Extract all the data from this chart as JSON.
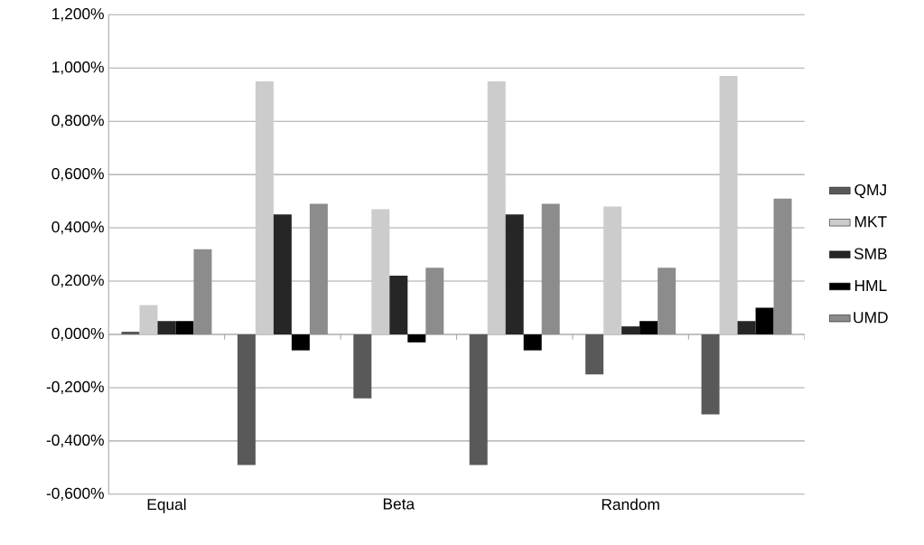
{
  "chart_data": {
    "type": "bar",
    "categories": [
      "Equal",
      null,
      "Beta",
      null,
      "Random",
      null
    ],
    "series": [
      {
        "name": "QMJ",
        "color": "#595959",
        "values": [
          0.01,
          -0.49,
          -0.24,
          -0.49,
          -0.15,
          -0.3
        ]
      },
      {
        "name": "MKT",
        "color": "#cccccc",
        "values": [
          0.11,
          0.95,
          0.47,
          0.95,
          0.48,
          0.97
        ]
      },
      {
        "name": "SMB",
        "color": "#262626",
        "values": [
          0.05,
          0.45,
          0.22,
          0.45,
          0.03,
          0.05
        ]
      },
      {
        "name": "HML",
        "color": "#000000",
        "values": [
          0.05,
          -0.06,
          -0.03,
          -0.06,
          0.05,
          0.1
        ]
      },
      {
        "name": "UMD",
        "color": "#8c8c8c",
        "values": [
          0.32,
          0.49,
          0.25,
          0.49,
          0.25,
          0.51
        ]
      }
    ],
    "ylim": [
      -0.6,
      1.2
    ],
    "yticks": [
      {
        "value": -0.6,
        "label": "-0,600%"
      },
      {
        "value": -0.4,
        "label": "-0,400%"
      },
      {
        "value": -0.2,
        "label": "-0,200%"
      },
      {
        "value": 0,
        "label": "0,000%"
      },
      {
        "value": 0.2,
        "label": "0,200%"
      },
      {
        "value": 0.4,
        "label": "0,400%"
      },
      {
        "value": 0.6,
        "label": "0,600%"
      },
      {
        "value": 0.8,
        "label": "0,800%"
      },
      {
        "value": 1.0,
        "label": "1,000%"
      },
      {
        "value": 1.2,
        "label": "1,200%"
      }
    ],
    "grid": "y",
    "legend": "right"
  }
}
